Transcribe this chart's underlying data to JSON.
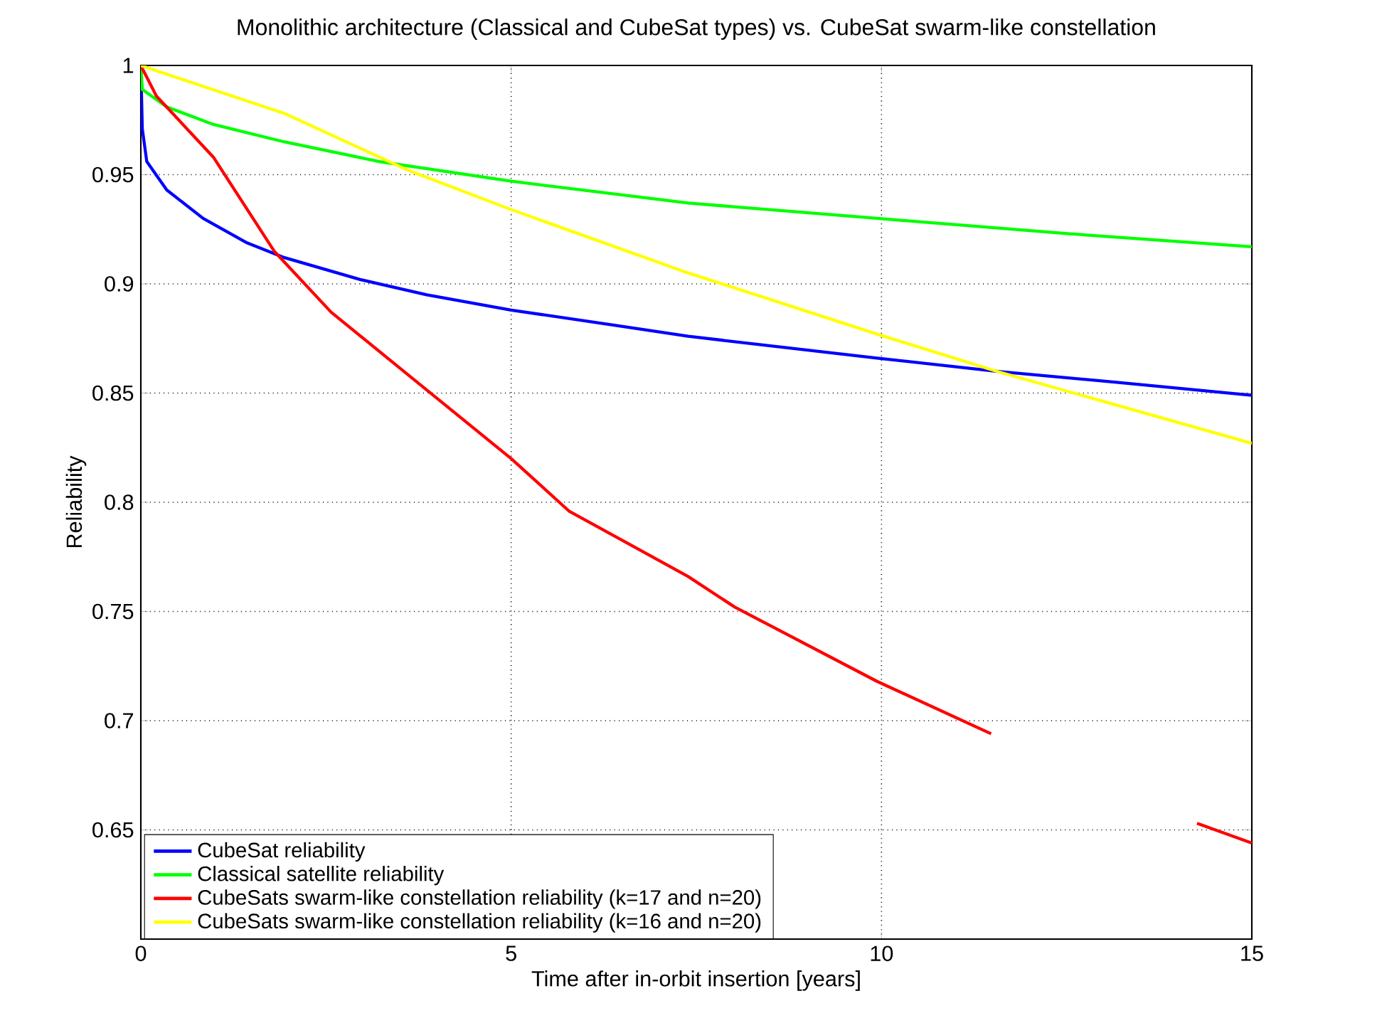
{
  "chart_data": {
    "type": "line",
    "title": "Monolithic architecture (Classical and CubeSat types) vs. CubeSat swarm-like constellation",
    "xlabel": "Time after in-orbit insertion [years]",
    "ylabel": "Reliability",
    "xlim": [
      0,
      15
    ],
    "ylim": [
      0.6,
      1
    ],
    "xticks": [
      0,
      5,
      10,
      15
    ],
    "yticks": [
      0.65,
      0.7,
      0.75,
      0.8,
      0.85,
      0.9,
      0.95,
      1
    ],
    "grid": true,
    "legend": "bottom left",
    "series": [
      {
        "name": "CubeSat reliability",
        "color": "#0000ff",
        "x": [
          0,
          0.02,
          0.08,
          0.35,
          0.84,
          1.42,
          1.94,
          2.96,
          3.86,
          5,
          6.41,
          7.39,
          9.94,
          11.55,
          13.15,
          15
        ],
        "values": [
          1,
          0.971,
          0.956,
          0.943,
          0.93,
          0.919,
          0.912,
          0.902,
          0.895,
          0.888,
          0.881,
          0.876,
          0.866,
          0.86,
          0.855,
          0.849
        ]
      },
      {
        "name": "Classical satellite reliability",
        "color": "#00ff00",
        "x": [
          0,
          0.02,
          0.35,
          0.98,
          1.94,
          3.22,
          5,
          7.39,
          9.94,
          12.51,
          15
        ],
        "values": [
          1,
          0.989,
          0.981,
          0.973,
          0.965,
          0.956,
          0.947,
          0.937,
          0.93,
          0.923,
          0.917
        ]
      },
      {
        "name": "CubeSats swarm-like constellation reliability (k=17 and n=20)",
        "color": "#ff0000",
        "x": [
          0,
          0.21,
          0.98,
          1.8,
          2.57,
          3.73,
          5,
          5.78,
          7.39,
          8.02,
          9.94,
          11.48,
          12.5,
          14.26,
          15
        ],
        "values": [
          1,
          0.986,
          0.958,
          0.915,
          0.887,
          0.855,
          0.82,
          0.796,
          0.766,
          0.752,
          0.718,
          0.694,
          null,
          0.653,
          0.644
        ]
      },
      {
        "name": "CubeSats swarm-like constellation reliability (k=16 and n=20)",
        "color": "#ffff00",
        "x": [
          0,
          1.94,
          3.61,
          5,
          7.39,
          9.94,
          11.55,
          15
        ],
        "values": [
          1,
          0.978,
          0.952,
          0.934,
          0.905,
          0.877,
          0.86,
          0.827
        ]
      }
    ]
  }
}
